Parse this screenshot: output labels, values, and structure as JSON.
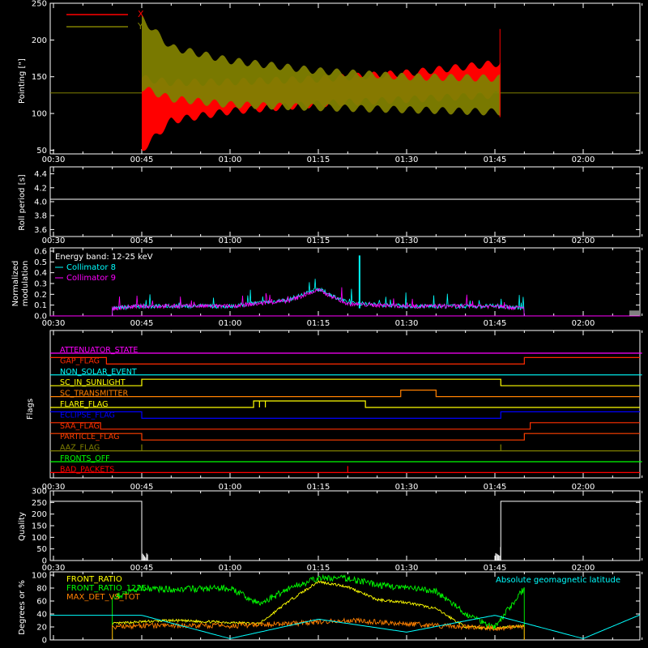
{
  "panels": {
    "pointing": {
      "ylabel": "Pointing [\"]",
      "yticks": [
        "250",
        "200",
        "150",
        "100",
        "50"
      ],
      "legend": [
        {
          "label": "X",
          "color": "#ff0000"
        },
        {
          "label": "Y",
          "color": "#808000"
        }
      ]
    },
    "roll": {
      "ylabel": "Roll period [s]",
      "yticks": [
        "4.4",
        "4.2",
        "4.0",
        "3.8",
        "3.6"
      ]
    },
    "modulation": {
      "ylabel_line1": "Normalized",
      "ylabel_line2": "modulation",
      "yticks": [
        "0.6",
        "0.5",
        "0.4",
        "0.3",
        "0.2",
        "0.1",
        "0.0"
      ],
      "legend_title": "Energy band: 12-25 keV",
      "legend": [
        {
          "label": "Collimator 8",
          "color": "#00ffff"
        },
        {
          "label": "Collimator 9",
          "color": "#ff00ff"
        }
      ]
    },
    "flags": {
      "ylabel": "Flags",
      "items": [
        {
          "label": "ATTENUATOR_STATE",
          "color": "#ff00ff"
        },
        {
          "label": "GAP_FLAG",
          "color": "#ff2a00"
        },
        {
          "label": "NON_SOLAR_EVENT",
          "color": "#00ffff"
        },
        {
          "label": "SC_IN_SUNLIGHT",
          "color": "#ffff00"
        },
        {
          "label": "SC_TRANSMITTER",
          "color": "#ff8000"
        },
        {
          "label": "FLARE_FLAG",
          "color": "#ffff00"
        },
        {
          "label": "ECLIPSE_FLAG",
          "color": "#0000ff"
        },
        {
          "label": "SAA_FLAG",
          "color": "#ff3000"
        },
        {
          "label": "PARTICLE_FLAG",
          "color": "#ff4000"
        },
        {
          "label": "AAZ_FLAG",
          "color": "#808000"
        },
        {
          "label": "FRONTS_OFF",
          "color": "#00ff00"
        },
        {
          "label": "BAD_PACKETS",
          "color": "#ff0000"
        }
      ]
    },
    "quality": {
      "ylabel": "Quality",
      "yticks": [
        "300",
        "250",
        "200",
        "150",
        "100",
        "50",
        "0"
      ]
    },
    "degrees": {
      "ylabel": "Degrees or %",
      "yticks": [
        "100",
        "80",
        "60",
        "40",
        "20",
        "0"
      ],
      "legend": [
        {
          "label": "FRONT_RATIO",
          "color": "#ffff00"
        },
        {
          "label": "FRONT_RATIO_1225",
          "color": "#00ff00"
        },
        {
          "label": "MAX_DET_VS_TOT",
          "color": "#ff8000"
        }
      ],
      "legend_right": {
        "label": "Absolute geomagnetic latitude",
        "color": "#00ffff"
      }
    }
  },
  "xticks": [
    "00:30",
    "00:45",
    "01:00",
    "01:15",
    "01:30",
    "01:45",
    "02:00"
  ],
  "chart_data": [
    {
      "type": "line",
      "title": "",
      "ylabel": "Pointing [\"]",
      "ylim": [
        45,
        250
      ],
      "xlim": [
        "00:30",
        "02:10"
      ],
      "series": [
        {
          "name": "X",
          "color": "#ff0000",
          "baseline": 128,
          "active_range": [
            "00:45",
            "01:46"
          ],
          "envelope_x": [
            "00:45",
            "00:50",
            "01:00",
            "01:15",
            "01:30",
            "01:45"
          ],
          "upper": [
            148,
            142,
            143,
            147,
            155,
            168
          ],
          "lower": [
            50,
            90,
            103,
            113,
            119,
            125
          ]
        },
        {
          "name": "Y",
          "color": "#808000",
          "baseline": 128,
          "active_range": [
            "00:45",
            "01:46"
          ],
          "envelope_x": [
            "00:45",
            "00:50",
            "01:00",
            "01:15",
            "01:30",
            "01:45"
          ],
          "upper": [
            230,
            190,
            172,
            158,
            150,
            148
          ],
          "lower": [
            135,
            120,
            112,
            108,
            105,
            102
          ]
        }
      ]
    },
    {
      "type": "line",
      "ylabel": "Roll period [s]",
      "ylim": [
        3.5,
        4.5
      ],
      "series": [
        {
          "name": "",
          "color": "#ffffff",
          "x": [
            "00:30",
            "02:10"
          ],
          "y": [
            4.0,
            4.0
          ]
        }
      ]
    },
    {
      "type": "line",
      "title": "Energy band: 12-25 keV",
      "ylabel": "Normalized modulation",
      "ylim": [
        0,
        0.6
      ],
      "series": [
        {
          "name": "Collimator 8",
          "color": "#00ffff",
          "x": [
            "00:40",
            "00:45",
            "01:00",
            "01:10",
            "01:15",
            "01:20",
            "01:30",
            "01:45",
            "01:50"
          ],
          "y": [
            0.07,
            0.09,
            0.09,
            0.15,
            0.25,
            0.12,
            0.09,
            0.09,
            0.07
          ],
          "spike": {
            "x": "01:22",
            "y": 0.56
          }
        },
        {
          "name": "Collimator 9",
          "color": "#ff00ff",
          "x": [
            "00:40",
            "00:45",
            "01:00",
            "01:10",
            "01:15",
            "01:20",
            "01:30",
            "01:45",
            "01:50"
          ],
          "y": [
            0.07,
            0.09,
            0.09,
            0.14,
            0.24,
            0.11,
            0.09,
            0.09,
            0.07
          ]
        }
      ]
    },
    {
      "type": "line",
      "ylabel": "Flags",
      "series": [
        {
          "name": "ATTENUATOR_STATE",
          "steps": [
            [
              "00:30",
              0
            ],
            [
              "02:10",
              0
            ]
          ]
        },
        {
          "name": "GAP_FLAG",
          "steps": [
            [
              "00:30",
              1
            ],
            [
              "00:39",
              0
            ],
            [
              "01:50",
              1
            ]
          ]
        },
        {
          "name": "NON_SOLAR_EVENT",
          "steps": [
            [
              "00:30",
              0
            ],
            [
              "02:10",
              0
            ]
          ]
        },
        {
          "name": "SC_IN_SUNLIGHT",
          "steps": [
            [
              "00:30",
              0
            ],
            [
              "00:45",
              1
            ],
            [
              "01:46",
              0
            ]
          ]
        },
        {
          "name": "SC_TRANSMITTER",
          "steps": [
            [
              "00:30",
              0
            ],
            [
              "01:29",
              1
            ],
            [
              "01:35",
              0
            ]
          ]
        },
        {
          "name": "FLARE_FLAG",
          "steps": [
            [
              "00:30",
              0
            ],
            [
              "01:04",
              1
            ],
            [
              "01:05",
              0
            ],
            [
              "01:05",
              1
            ],
            [
              "01:06",
              0
            ],
            [
              "01:06",
              1
            ],
            [
              "01:23",
              0
            ]
          ]
        },
        {
          "name": "ECLIPSE_FLAG",
          "steps": [
            [
              "00:30",
              1
            ],
            [
              "00:45",
              0
            ],
            [
              "01:46",
              1
            ]
          ]
        },
        {
          "name": "SAA_FLAG",
          "steps": [
            [
              "00:30",
              1
            ],
            [
              "00:38",
              0
            ],
            [
              "01:51",
              1
            ]
          ]
        },
        {
          "name": "PARTICLE_FLAG",
          "steps": [
            [
              "00:30",
              1
            ],
            [
              "00:45",
              0
            ],
            [
              "01:50",
              1
            ]
          ]
        },
        {
          "name": "AAZ_FLAG",
          "steps": [
            [
              "00:30",
              0
            ],
            [
              "00:45",
              1
            ],
            [
              "00:45",
              0
            ],
            [
              "01:46",
              1
            ],
            [
              "01:46",
              0
            ]
          ]
        },
        {
          "name": "FRONTS_OFF",
          "steps": [
            [
              "00:30",
              0
            ],
            [
              "02:10",
              0
            ]
          ]
        },
        {
          "name": "BAD_PACKETS",
          "steps": [
            [
              "00:30",
              0
            ],
            [
              "01:20",
              1
            ],
            [
              "01:20",
              0
            ]
          ]
        }
      ]
    },
    {
      "type": "line",
      "ylabel": "Quality",
      "ylim": [
        0,
        300
      ],
      "series": [
        {
          "name": "",
          "color": "#ffffff",
          "x": [
            "00:30",
            "00:45",
            "00:45",
            "01:46",
            "01:46",
            "02:10"
          ],
          "y": [
            255,
            255,
            0,
            0,
            255,
            255
          ]
        }
      ]
    },
    {
      "type": "line",
      "ylabel": "Degrees or %",
      "ylim": [
        0,
        100
      ],
      "series": [
        {
          "name": "FRONT_RATIO",
          "color": "#ffff00",
          "x": [
            "00:40",
            "00:45",
            "00:50",
            "01:00",
            "01:05",
            "01:10",
            "01:15",
            "01:20",
            "01:25",
            "01:30",
            "01:35",
            "01:40",
            "01:45",
            "01:50"
          ],
          "y": [
            25,
            28,
            30,
            27,
            25,
            60,
            90,
            82,
            62,
            58,
            48,
            20,
            18,
            22
          ]
        },
        {
          "name": "FRONT_RATIO_1225",
          "color": "#00ff00",
          "x": [
            "00:40",
            "00:45",
            "00:50",
            "01:00",
            "01:05",
            "01:10",
            "01:15",
            "01:20",
            "01:25",
            "01:30",
            "01:35",
            "01:40",
            "01:45",
            "01:50"
          ],
          "y": [
            65,
            80,
            78,
            80,
            55,
            80,
            95,
            95,
            85,
            80,
            75,
            40,
            20,
            80
          ]
        },
        {
          "name": "MAX_DET_VS_TOT",
          "color": "#ff8000",
          "x": [
            "00:40",
            "00:45",
            "00:50",
            "01:00",
            "01:05",
            "01:10",
            "01:15",
            "01:20",
            "01:25",
            "01:30",
            "01:35",
            "01:40",
            "01:45",
            "01:50"
          ],
          "y": [
            20,
            22,
            22,
            22,
            23,
            25,
            28,
            30,
            28,
            25,
            22,
            20,
            18,
            20
          ]
        },
        {
          "name": "Absolute geomagnetic latitude",
          "color": "#00ffff",
          "x": [
            "00:30",
            "00:45",
            "01:00",
            "01:15",
            "01:30",
            "01:45",
            "02:00",
            "02:10"
          ],
          "y": [
            38,
            38,
            2,
            32,
            12,
            38,
            2,
            40
          ]
        }
      ]
    }
  ]
}
